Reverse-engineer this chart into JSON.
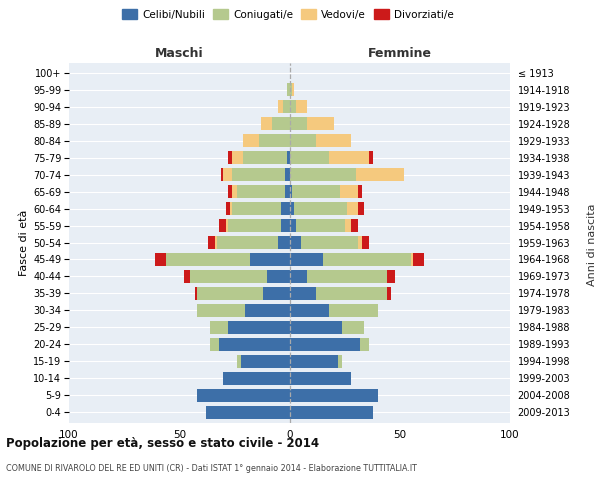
{
  "age_groups": [
    "0-4",
    "5-9",
    "10-14",
    "15-19",
    "20-24",
    "25-29",
    "30-34",
    "35-39",
    "40-44",
    "45-49",
    "50-54",
    "55-59",
    "60-64",
    "65-69",
    "70-74",
    "75-79",
    "80-84",
    "85-89",
    "90-94",
    "95-99",
    "100+"
  ],
  "birth_years": [
    "2009-2013",
    "2004-2008",
    "1999-2003",
    "1994-1998",
    "1989-1993",
    "1984-1988",
    "1979-1983",
    "1974-1978",
    "1969-1973",
    "1964-1968",
    "1959-1963",
    "1954-1958",
    "1949-1953",
    "1944-1948",
    "1939-1943",
    "1934-1938",
    "1929-1933",
    "1924-1928",
    "1919-1923",
    "1914-1918",
    "≤ 1913"
  ],
  "colors": {
    "celibi": "#3d6fa8",
    "coniugati": "#b5c98e",
    "vedovi": "#f5c97e",
    "divorziati": "#cc1a1a"
  },
  "males": {
    "celibi": [
      38,
      42,
      30,
      22,
      32,
      28,
      20,
      12,
      10,
      18,
      5,
      4,
      4,
      2,
      2,
      1,
      0,
      0,
      0,
      0,
      0
    ],
    "coniugati": [
      0,
      0,
      0,
      2,
      4,
      8,
      22,
      30,
      35,
      38,
      28,
      24,
      22,
      22,
      24,
      20,
      14,
      8,
      3,
      1,
      0
    ],
    "vedovi": [
      0,
      0,
      0,
      0,
      0,
      0,
      0,
      0,
      0,
      0,
      1,
      1,
      1,
      2,
      4,
      5,
      7,
      5,
      2,
      0,
      0
    ],
    "divorziati": [
      0,
      0,
      0,
      0,
      0,
      0,
      0,
      1,
      3,
      5,
      3,
      3,
      2,
      2,
      1,
      2,
      0,
      0,
      0,
      0,
      0
    ]
  },
  "females": {
    "nubili": [
      38,
      40,
      28,
      22,
      32,
      24,
      18,
      12,
      8,
      15,
      5,
      3,
      2,
      1,
      0,
      0,
      0,
      0,
      0,
      0,
      0
    ],
    "coniugate": [
      0,
      0,
      0,
      2,
      4,
      10,
      22,
      32,
      36,
      40,
      26,
      22,
      24,
      22,
      30,
      18,
      12,
      8,
      3,
      1,
      0
    ],
    "vedove": [
      0,
      0,
      0,
      0,
      0,
      0,
      0,
      0,
      0,
      1,
      2,
      3,
      5,
      8,
      22,
      18,
      16,
      12,
      5,
      1,
      0
    ],
    "divorziate": [
      0,
      0,
      0,
      0,
      0,
      0,
      0,
      2,
      4,
      5,
      3,
      3,
      3,
      2,
      0,
      2,
      0,
      0,
      0,
      0,
      0
    ]
  },
  "title": "Popolazione per età, sesso e stato civile - 2014",
  "subtitle": "COMUNE DI RIVAROLO DEL RE ED UNITI (CR) - Dati ISTAT 1° gennaio 2014 - Elaborazione TUTTITALIA.IT",
  "xlabel_left": "Maschi",
  "xlabel_right": "Femmine",
  "ylabel": "Fasce di età",
  "ylabel_right": "Anni di nascita",
  "xlim": 100,
  "legend_labels": [
    "Celibi/Nubili",
    "Coniugati/e",
    "Vedovi/e",
    "Divorziati/e"
  ],
  "background_color": "#ffffff",
  "plot_bg_color": "#e8eef5",
  "grid_color": "#ffffff"
}
